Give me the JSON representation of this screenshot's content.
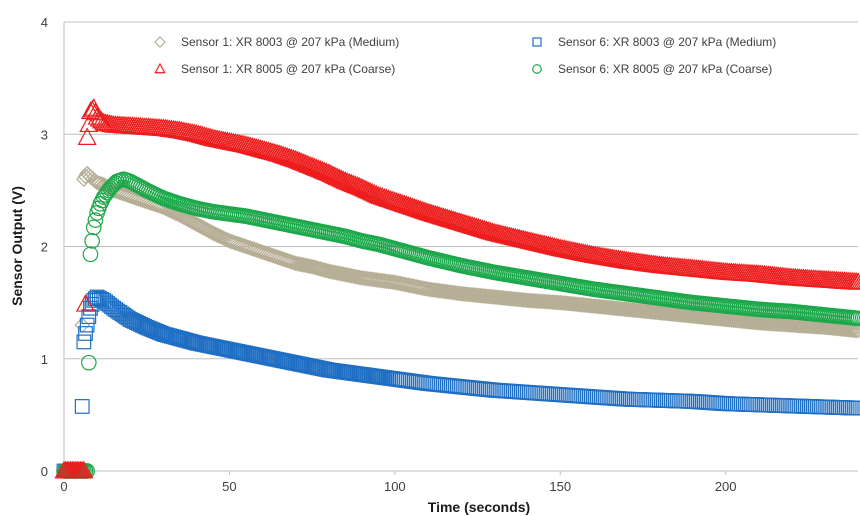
{
  "chart_data": {
    "type": "scatter",
    "title": "",
    "xlabel": "Time (seconds)",
    "ylabel": "Sensor Output (V)",
    "xlim": [
      0,
      240
    ],
    "ylim": [
      0,
      4
    ],
    "xticks": [
      0,
      50,
      100,
      150,
      200
    ],
    "yticks": [
      0,
      1,
      2,
      3,
      4
    ],
    "grid": "horizontal",
    "legend": "top",
    "series": [
      {
        "name": "Sensor 1: XR 8003 @ 207 kPa (Medium)",
        "marker": "diamond",
        "color": "#b5ae95",
        "points": [
          [
            0,
            0
          ],
          [
            1,
            0
          ],
          [
            2,
            0
          ],
          [
            3,
            0
          ],
          [
            4,
            0
          ],
          [
            5,
            0
          ],
          [
            6,
            2.6
          ],
          [
            7,
            2.65
          ],
          [
            8,
            2.62
          ],
          [
            10,
            2.57
          ],
          [
            12,
            2.55
          ],
          [
            15,
            2.5
          ],
          [
            20,
            2.45
          ],
          [
            25,
            2.4
          ],
          [
            30,
            2.35
          ],
          [
            35,
            2.28
          ],
          [
            40,
            2.2
          ],
          [
            45,
            2.12
          ],
          [
            50,
            2.05
          ],
          [
            55,
            2.0
          ],
          [
            60,
            1.95
          ],
          [
            65,
            1.9
          ],
          [
            70,
            1.85
          ],
          [
            75,
            1.82
          ],
          [
            80,
            1.78
          ],
          [
            85,
            1.75
          ],
          [
            90,
            1.72
          ],
          [
            95,
            1.7
          ],
          [
            100,
            1.68
          ],
          [
            110,
            1.62
          ],
          [
            120,
            1.58
          ],
          [
            130,
            1.55
          ],
          [
            140,
            1.52
          ],
          [
            150,
            1.5
          ],
          [
            160,
            1.47
          ],
          [
            170,
            1.44
          ],
          [
            180,
            1.41
          ],
          [
            190,
            1.38
          ],
          [
            200,
            1.35
          ],
          [
            210,
            1.32
          ],
          [
            220,
            1.3
          ],
          [
            230,
            1.28
          ],
          [
            240,
            1.25
          ]
        ]
      },
      {
        "name": "Sensor 1: XR 8005 @ 207 kPa (Coarse)",
        "marker": "triangle",
        "color": "#ee1c1c",
        "points": [
          [
            0,
            0
          ],
          [
            1,
            0
          ],
          [
            2,
            0
          ],
          [
            3,
            0
          ],
          [
            4,
            0
          ],
          [
            5,
            0
          ],
          [
            6,
            0
          ],
          [
            7,
            2.97
          ],
          [
            8,
            3.2
          ],
          [
            9,
            3.23
          ],
          [
            10,
            3.15
          ],
          [
            12,
            3.1
          ],
          [
            15,
            3.08
          ],
          [
            20,
            3.07
          ],
          [
            25,
            3.06
          ],
          [
            30,
            3.05
          ],
          [
            35,
            3.03
          ],
          [
            40,
            3.0
          ],
          [
            45,
            2.96
          ],
          [
            50,
            2.93
          ],
          [
            55,
            2.9
          ],
          [
            60,
            2.86
          ],
          [
            65,
            2.82
          ],
          [
            70,
            2.77
          ],
          [
            75,
            2.71
          ],
          [
            80,
            2.65
          ],
          [
            85,
            2.58
          ],
          [
            90,
            2.52
          ],
          [
            95,
            2.45
          ],
          [
            100,
            2.4
          ],
          [
            110,
            2.3
          ],
          [
            120,
            2.21
          ],
          [
            130,
            2.12
          ],
          [
            140,
            2.05
          ],
          [
            150,
            1.98
          ],
          [
            160,
            1.92
          ],
          [
            170,
            1.87
          ],
          [
            180,
            1.83
          ],
          [
            190,
            1.8
          ],
          [
            200,
            1.77
          ],
          [
            210,
            1.75
          ],
          [
            220,
            1.72
          ],
          [
            230,
            1.7
          ],
          [
            240,
            1.68
          ]
        ]
      },
      {
        "name": "Sensor 6: XR 8003 @ 207 kPa (Medium)",
        "marker": "square",
        "color": "#1f6fc4",
        "points": [
          [
            0,
            0
          ],
          [
            1,
            0
          ],
          [
            2,
            0
          ],
          [
            3,
            0
          ],
          [
            4,
            0
          ],
          [
            5,
            0
          ],
          [
            6,
            1.15
          ],
          [
            7,
            1.3
          ],
          [
            8,
            1.45
          ],
          [
            9,
            1.52
          ],
          [
            10,
            1.55
          ],
          [
            12,
            1.52
          ],
          [
            15,
            1.45
          ],
          [
            20,
            1.35
          ],
          [
            25,
            1.28
          ],
          [
            30,
            1.22
          ],
          [
            35,
            1.18
          ],
          [
            40,
            1.14
          ],
          [
            45,
            1.11
          ],
          [
            50,
            1.08
          ],
          [
            55,
            1.05
          ],
          [
            60,
            1.02
          ],
          [
            65,
            0.99
          ],
          [
            70,
            0.96
          ],
          [
            75,
            0.93
          ],
          [
            80,
            0.9
          ],
          [
            85,
            0.88
          ],
          [
            90,
            0.86
          ],
          [
            95,
            0.84
          ],
          [
            100,
            0.82
          ],
          [
            110,
            0.78
          ],
          [
            120,
            0.75
          ],
          [
            130,
            0.72
          ],
          [
            140,
            0.7
          ],
          [
            150,
            0.68
          ],
          [
            160,
            0.66
          ],
          [
            170,
            0.64
          ],
          [
            180,
            0.63
          ],
          [
            190,
            0.62
          ],
          [
            200,
            0.6
          ],
          [
            210,
            0.59
          ],
          [
            220,
            0.58
          ],
          [
            230,
            0.57
          ],
          [
            240,
            0.56
          ]
        ]
      },
      {
        "name": "Sensor 6: XR 8005 @ 207 kPa (Coarse)",
        "marker": "circle",
        "color": "#1ba84a",
        "points": [
          [
            0,
            0
          ],
          [
            1,
            0
          ],
          [
            2,
            0
          ],
          [
            3,
            0
          ],
          [
            4,
            0
          ],
          [
            5,
            0
          ],
          [
            6,
            0
          ],
          [
            7,
            0
          ],
          [
            8,
            1.93
          ],
          [
            9,
            2.17
          ],
          [
            10,
            2.3
          ],
          [
            11,
            2.38
          ],
          [
            12,
            2.44
          ],
          [
            13,
            2.48
          ],
          [
            14,
            2.52
          ],
          [
            15,
            2.55
          ],
          [
            16,
            2.58
          ],
          [
            18,
            2.6
          ],
          [
            20,
            2.58
          ],
          [
            25,
            2.5
          ],
          [
            30,
            2.43
          ],
          [
            35,
            2.38
          ],
          [
            40,
            2.34
          ],
          [
            45,
            2.31
          ],
          [
            50,
            2.29
          ],
          [
            55,
            2.27
          ],
          [
            60,
            2.24
          ],
          [
            65,
            2.21
          ],
          [
            70,
            2.18
          ],
          [
            75,
            2.15
          ],
          [
            80,
            2.12
          ],
          [
            85,
            2.09
          ],
          [
            90,
            2.05
          ],
          [
            95,
            2.02
          ],
          [
            100,
            1.98
          ],
          [
            110,
            1.9
          ],
          [
            120,
            1.83
          ],
          [
            130,
            1.77
          ],
          [
            140,
            1.72
          ],
          [
            150,
            1.67
          ],
          [
            160,
            1.62
          ],
          [
            170,
            1.58
          ],
          [
            180,
            1.54
          ],
          [
            190,
            1.5
          ],
          [
            200,
            1.47
          ],
          [
            210,
            1.44
          ],
          [
            220,
            1.42
          ],
          [
            230,
            1.39
          ],
          [
            240,
            1.36
          ]
        ]
      }
    ]
  }
}
